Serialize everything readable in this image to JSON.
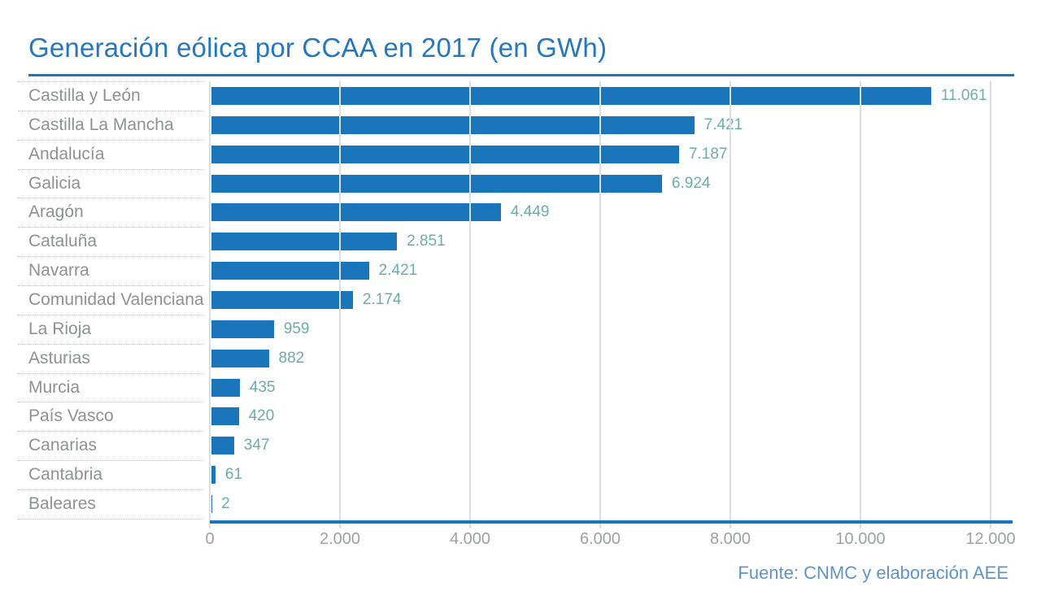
{
  "title": "Generación eólica por CCAA en 2017 (en GWh)",
  "footer": "Fuente: CNMC y elaboración AEE",
  "colors": {
    "bar": "#1b75bb",
    "title_text": "#2678be",
    "value_label": "#6cada7",
    "category_label": "#8e9192",
    "tick_label": "#9da1a4",
    "gridline": "#dcdfe2",
    "dotted_separator": "#a5c3b6",
    "footer_text": "#6093c6",
    "axis_line": "#1b75bb"
  },
  "chart_data": {
    "type": "bar",
    "orientation": "horizontal",
    "title": "Generación eólica por CCAA en 2017 (en GWh)",
    "unit": "GWh",
    "categories": [
      "Castilla y León",
      "Castilla La Mancha",
      "Andalucía",
      "Galicia",
      "Aragón",
      "Cataluña",
      "Navarra",
      "Comunidad Valenciana",
      "La Rioja",
      "Asturias",
      "Murcia",
      "País Vasco",
      "Canarias",
      "Cantabria",
      "Baleares"
    ],
    "values": [
      11061,
      7421,
      7187,
      6924,
      4449,
      2851,
      2421,
      2174,
      959,
      882,
      435,
      420,
      347,
      61,
      2
    ],
    "value_labels": [
      "11.061",
      "7.421",
      "7.187",
      "6.924",
      "4.449",
      "2.851",
      "2.421",
      "2.174",
      "959",
      "882",
      "435",
      "420",
      "347",
      "61",
      "2"
    ],
    "xlim": [
      0,
      12000
    ],
    "x_ticks": [
      0,
      2000,
      4000,
      6000,
      8000,
      10000,
      12000
    ],
    "x_tick_labels": [
      "0",
      "2.000",
      "4.000",
      "6.000",
      "8.000",
      "10.000",
      "12.000"
    ],
    "grid": true,
    "legend": null,
    "source": "Fuente: CNMC y elaboración AEE"
  }
}
